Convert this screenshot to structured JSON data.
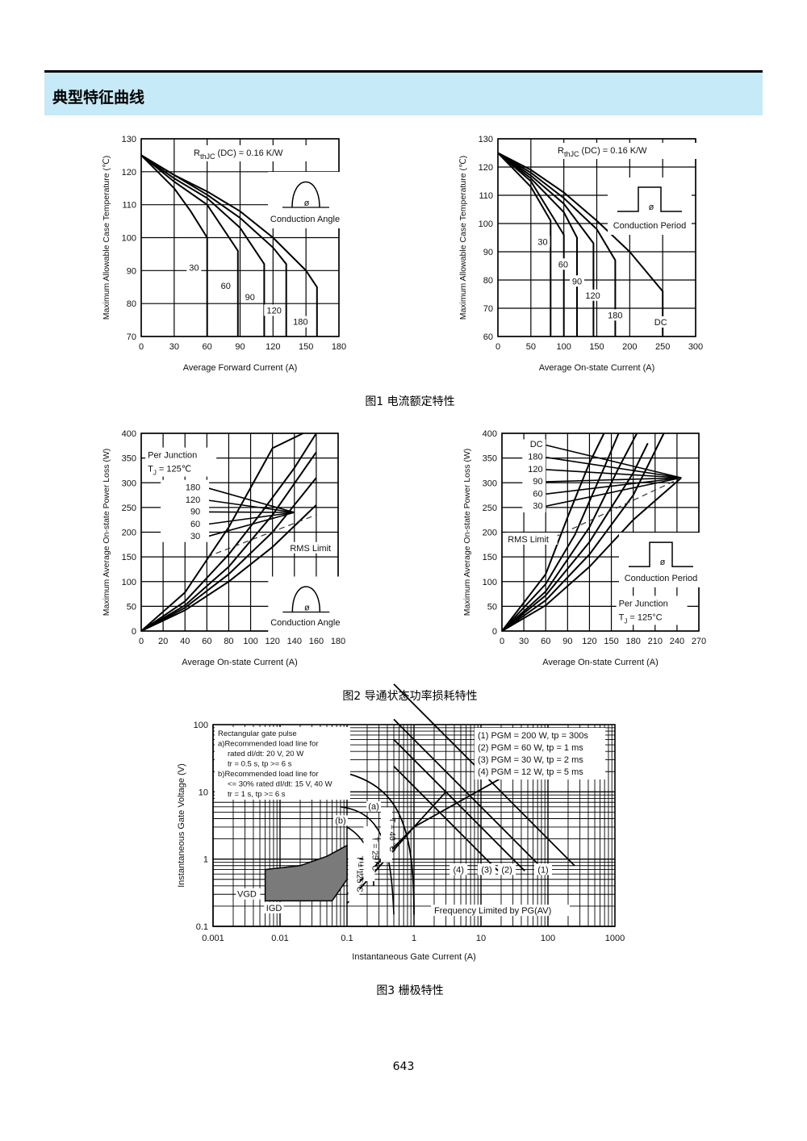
{
  "section_title": "典型特征曲线",
  "captions": {
    "fig1": "图1  电流额定特性",
    "fig2": "图2  导通状态功率损耗特性",
    "fig3": "图3  栅极特性"
  },
  "page_number": "643",
  "chart_data": [
    {
      "id": "c1",
      "type": "line",
      "xlabel": "Average Forward Current (A)",
      "ylabel": "Maximum Allowable Case Temperature (℃)",
      "xlim": [
        0,
        180
      ],
      "ylim": [
        70,
        130
      ],
      "xticks": [
        0,
        30,
        60,
        90,
        120,
        150,
        180
      ],
      "yticks": [
        70,
        80,
        90,
        100,
        110,
        120,
        130
      ],
      "annotation": "(DC) = 0.16 K/W",
      "annotation_symbol": "R",
      "annotation_sub": "thJC",
      "inset_label": "Conduction Angle",
      "inset_symbol": "ø",
      "series": [
        {
          "name": "30",
          "x": [
            0,
            30,
            45,
            60,
            60
          ],
          "y": [
            125,
            115,
            108,
            100,
            70
          ]
        },
        {
          "name": "60",
          "x": [
            0,
            30,
            60,
            88,
            88
          ],
          "y": [
            125,
            117,
            110,
            96,
            70
          ]
        },
        {
          "name": "90",
          "x": [
            0,
            30,
            60,
            90,
            112,
            112
          ],
          "y": [
            125,
            118,
            112,
            103,
            92,
            70
          ]
        },
        {
          "name": "120",
          "x": [
            0,
            30,
            60,
            90,
            120,
            132,
            132
          ],
          "y": [
            125,
            119,
            113,
            106,
            97,
            92,
            70
          ]
        },
        {
          "name": "180",
          "x": [
            0,
            30,
            60,
            90,
            120,
            150,
            160,
            160
          ],
          "y": [
            125,
            119,
            114,
            108,
            100,
            90,
            85,
            70
          ]
        }
      ],
      "series_labels": [
        {
          "text": "30",
          "x": 48,
          "y": 90
        },
        {
          "text": "60",
          "x": 77,
          "y": 84.5
        },
        {
          "text": "90",
          "x": 99,
          "y": 81
        },
        {
          "text": "120",
          "x": 121,
          "y": 77
        },
        {
          "text": "180",
          "x": 145,
          "y": 73.5
        }
      ]
    },
    {
      "id": "c2",
      "type": "line",
      "xlabel": "Average On-state Current (A)",
      "ylabel": "Maximum Allowable Case Temperature (℃)",
      "xlim": [
        0,
        300
      ],
      "ylim": [
        60,
        130
      ],
      "xticks": [
        0,
        50,
        100,
        150,
        200,
        250,
        300
      ],
      "yticks": [
        60,
        70,
        80,
        90,
        100,
        110,
        120,
        130
      ],
      "annotation": "(DC) = 0.16 K/W",
      "annotation_symbol": "R",
      "annotation_sub": "thJC",
      "inset_label": "Conduction Period",
      "inset_symbol": "ø",
      "series": [
        {
          "name": "30",
          "x": [
            0,
            50,
            80,
            80
          ],
          "y": [
            125,
            113,
            101,
            60
          ]
        },
        {
          "name": "60",
          "x": [
            0,
            50,
            100,
            100
          ],
          "y": [
            125,
            115,
            96,
            60
          ]
        },
        {
          "name": "90",
          "x": [
            0,
            50,
            100,
            120,
            120
          ],
          "y": [
            125,
            116,
            104,
            95,
            60
          ]
        },
        {
          "name": "120",
          "x": [
            0,
            50,
            100,
            145,
            145
          ],
          "y": [
            125,
            117,
            107,
            93,
            60
          ]
        },
        {
          "name": "180",
          "x": [
            0,
            50,
            100,
            150,
            178,
            178
          ],
          "y": [
            125,
            118,
            109,
            98,
            87,
            60
          ]
        },
        {
          "name": "DC",
          "x": [
            0,
            50,
            100,
            150,
            200,
            250,
            250
          ],
          "y": [
            125,
            119,
            111,
            101,
            90,
            76,
            60
          ]
        }
      ],
      "series_labels": [
        {
          "text": "30",
          "x": 68,
          "y": 92.5
        },
        {
          "text": "60",
          "x": 99,
          "y": 84.5
        },
        {
          "text": "90",
          "x": 120,
          "y": 78.5
        },
        {
          "text": "120",
          "x": 144,
          "y": 73.5
        },
        {
          "text": "180",
          "x": 178,
          "y": 66.5
        },
        {
          "text": "DC",
          "x": 247,
          "y": 64
        }
      ]
    },
    {
      "id": "c3",
      "type": "line",
      "xlabel": "Average On-state Current (A)",
      "ylabel": "Maximum Average On-state Power Loss (W)",
      "xlim": [
        0,
        180
      ],
      "ylim": [
        0,
        400
      ],
      "xticks": [
        0,
        20,
        40,
        60,
        80,
        100,
        120,
        140,
        160,
        180
      ],
      "yticks": [
        0,
        50,
        100,
        150,
        200,
        250,
        300,
        350,
        400
      ],
      "annotation": "Per Junction",
      "annotation2": "T  = 125℃",
      "annotation2_sub": "J",
      "rms_label": "RMS Limit",
      "inset_label": "Conduction Angle",
      "inset_symbol": "ø",
      "series": [
        {
          "name": "30",
          "x": [
            0,
            40,
            80,
            100,
            120,
            148
          ],
          "y": [
            0,
            78,
            210,
            290,
            370,
            400
          ]
        },
        {
          "name": "60",
          "x": [
            0,
            40,
            80,
            110,
            140,
            160
          ],
          "y": [
            0,
            60,
            155,
            240,
            330,
            400
          ]
        },
        {
          "name": "90",
          "x": [
            0,
            40,
            80,
            120,
            160
          ],
          "y": [
            0,
            52,
            130,
            235,
            362
          ]
        },
        {
          "name": "120",
          "x": [
            0,
            40,
            80,
            120,
            160
          ],
          "y": [
            0,
            47,
            115,
            200,
            310
          ]
        },
        {
          "name": "180",
          "x": [
            0,
            40,
            80,
            120,
            160
          ],
          "y": [
            0,
            42,
            100,
            170,
            255
          ]
        }
      ],
      "legend_labels": [
        {
          "text": "180",
          "y": 285
        },
        {
          "text": "120",
          "y": 260
        },
        {
          "text": "90",
          "y": 236
        },
        {
          "text": "60",
          "y": 211
        },
        {
          "text": "30",
          "y": 186
        }
      ]
    },
    {
      "id": "c4",
      "type": "line",
      "xlabel": "Average On-state Current (A)",
      "ylabel": "Maximum Average On-state Power Loss (W)",
      "xlim": [
        0,
        270
      ],
      "ylim": [
        0,
        400
      ],
      "xticks": [
        0,
        30,
        60,
        90,
        120,
        150,
        180,
        210,
        240,
        270
      ],
      "yticks": [
        0,
        50,
        100,
        150,
        200,
        250,
        300,
        350,
        400
      ],
      "annotation": "Per Junction",
      "annotation2": "T  = 125°C",
      "annotation2_sub": "J",
      "rms_label": "RMS Limit",
      "inset_label": "Conduction Period",
      "inset_symbol": "ø",
      "series": [
        {
          "name": "30",
          "x": [
            0,
            60,
            90,
            120,
            140
          ],
          "y": [
            0,
            115,
            230,
            340,
            400
          ]
        },
        {
          "name": "60",
          "x": [
            0,
            60,
            100,
            140,
            160
          ],
          "y": [
            0,
            95,
            195,
            330,
            400
          ]
        },
        {
          "name": "90",
          "x": [
            0,
            60,
            120,
            160,
            185
          ],
          "y": [
            0,
            80,
            210,
            330,
            400
          ]
        },
        {
          "name": "120",
          "x": [
            0,
            60,
            120,
            180,
            200
          ],
          "y": [
            0,
            72,
            180,
            320,
            380
          ]
        },
        {
          "name": "180",
          "x": [
            0,
            60,
            120,
            180,
            222
          ],
          "y": [
            0,
            62,
            155,
            275,
            400
          ]
        },
        {
          "name": "DC",
          "x": [
            0,
            60,
            120,
            180,
            246
          ],
          "y": [
            0,
            52,
            130,
            225,
            310
          ]
        }
      ],
      "legend_labels": [
        {
          "text": "DC",
          "y": 372
        },
        {
          "text": "180",
          "y": 347
        },
        {
          "text": "120",
          "y": 322
        },
        {
          "text": "90",
          "y": 297
        },
        {
          "text": "60",
          "y": 272
        },
        {
          "text": "30",
          "y": 247
        }
      ]
    },
    {
      "id": "c5",
      "type": "line",
      "xlabel": "Instantaneous Gate Current (A)",
      "ylabel": "Instantaneous Gate Voltage (V)",
      "xscale": "log",
      "yscale": "log",
      "xlim": [
        0.001,
        1000
      ],
      "ylim": [
        0.1,
        100
      ],
      "xticks": [
        "0.001",
        "0.01",
        "0.1",
        "1",
        "10",
        "100",
        "1000"
      ],
      "yticks": [
        "0.1",
        "1",
        "10",
        "100"
      ],
      "notes": [
        "Rectangular gate pulse",
        "a)Recommended load line for",
        "rated dI/dt: 20 V, 20 W",
        "tr = 0.5 s, tp >= 6 s",
        "b)Recommended load line for",
        "<= 30% rated dI/dt: 15 V, 40 W",
        "tr = 1 s, tp >= 6 s"
      ],
      "pgm_labels": [
        "(1) PGM = 200 W, tp = 300s",
        "(2) PGM = 60 W, tp = 1 ms",
        "(3) PGM = 30 W, tp = 2 ms",
        "(4) PGM = 12 W, tp = 5 ms"
      ],
      "curve_tags": [
        "(4)",
        "(3)",
        "(2)",
        "(1)"
      ],
      "temp_labels": [
        "T  = 40 °C",
        "T  = 25 °C",
        "T  = 125°C"
      ],
      "tags": {
        "a": "(a)",
        "b": "(b)",
        "vgd": "VGD",
        "igd": "IGD",
        "freq": "Frequency Limited by PG(AV)"
      },
      "series": [
        {
          "name": "(1)",
          "x": [
            0.5,
            20,
            100,
            250
          ],
          "y": [
            400,
            10,
            2,
            0.8
          ]
        },
        {
          "name": "(2)",
          "x": [
            0.5,
            20,
            60,
            80
          ],
          "y": [
            120,
            3,
            1,
            0.75
          ]
        },
        {
          "name": "(3)",
          "x": [
            0.5,
            10,
            30,
            45
          ],
          "y": [
            60,
            3,
            1,
            0.67
          ]
        },
        {
          "name": "(4)",
          "x": [
            0.5,
            5,
            12,
            18
          ],
          "y": [
            24,
            2.4,
            1,
            0.67
          ]
        },
        {
          "name": "(a)",
          "x": [
            0.1,
            1,
            30
          ],
          "y": [
            0.3,
            3,
            20
          ]
        },
        {
          "name": "(b)",
          "x": [
            0.1,
            1,
            3
          ],
          "y": [
            0.22,
            3,
            10
          ]
        }
      ]
    }
  ]
}
